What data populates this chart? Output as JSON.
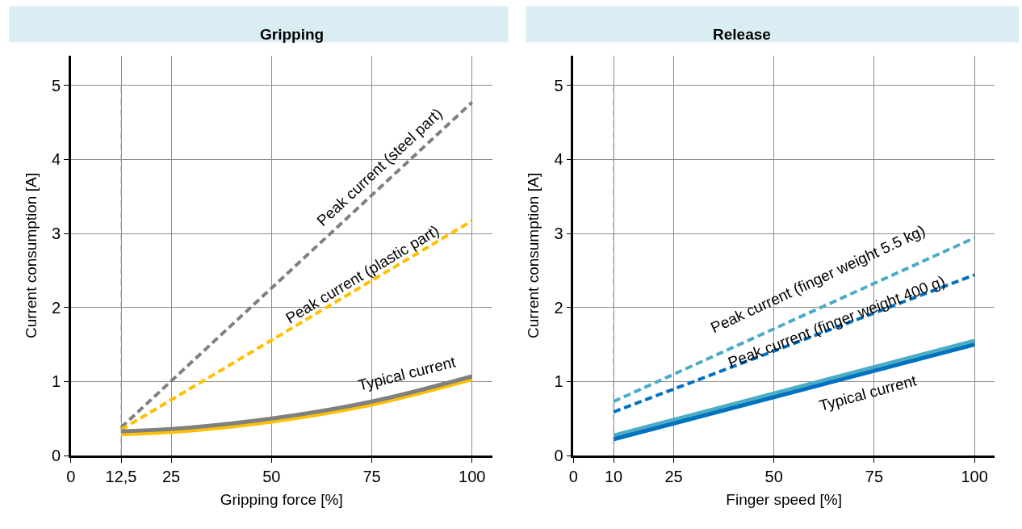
{
  "chart_data": [
    {
      "type": "line",
      "title": "Gripping",
      "xlabel": "Gripping force [%]",
      "ylabel": "Current consumption [A]",
      "xlim": [
        0,
        105
      ],
      "ylim": [
        0,
        5.4
      ],
      "xticks": [
        0,
        {
          "value": 12.5,
          "label": "12,5"
        },
        25,
        50,
        75,
        100
      ],
      "yticks": [
        0,
        1,
        2,
        3,
        4,
        5
      ],
      "grid": true,
      "series": [
        {
          "color": "#808080",
          "line_style": "dashed",
          "x": [
            12.5,
            100
          ],
          "values": [
            0.38,
            4.77
          ]
        },
        {
          "color": "#ffc000",
          "line_style": "dashed",
          "x": [
            12.5,
            100
          ],
          "values": [
            0.35,
            3.17
          ]
        },
        {
          "color": "#ffc000",
          "line_style": "solid",
          "x": [
            12.5,
            25,
            50,
            75,
            100
          ],
          "values": [
            0.29,
            0.32,
            0.46,
            0.69,
            1.03
          ]
        },
        {
          "color": "#808080",
          "line_style": "solid",
          "x": [
            12.5,
            25,
            50,
            75,
            100
          ],
          "values": [
            0.33,
            0.36,
            0.5,
            0.73,
            1.07
          ]
        }
      ],
      "ref_lines": [
        {
          "axis": "x",
          "value": 12.5,
          "color": "#a0a0a0",
          "line_style": "dashed"
        }
      ],
      "annotations": [
        "Peak current (steel part)",
        "Peak current (plastic part)",
        "Typical current"
      ]
    },
    {
      "type": "line",
      "title": "Release",
      "xlabel": "Finger speed [%]",
      "ylabel": "Current consumption [A]",
      "xlim": [
        0,
        105
      ],
      "ylim": [
        0,
        5.4
      ],
      "xticks": [
        0,
        {
          "value": 10,
          "label": "10"
        },
        25,
        50,
        75,
        100
      ],
      "yticks": [
        0,
        1,
        2,
        3,
        4,
        5
      ],
      "grid": true,
      "series": [
        {
          "color": "#4bacc6",
          "line_style": "dashed",
          "x": [
            10,
            100
          ],
          "values": [
            0.73,
            2.94
          ]
        },
        {
          "color": "#0070c0",
          "line_style": "dashed",
          "x": [
            10,
            100
          ],
          "values": [
            0.59,
            2.44
          ]
        },
        {
          "color": "#4bacc6",
          "line_style": "solid",
          "x": [
            10,
            100
          ],
          "values": [
            0.27,
            1.55
          ]
        },
        {
          "color": "#0070c0",
          "line_style": "solid",
          "x": [
            10,
            100
          ],
          "values": [
            0.22,
            1.5
          ]
        }
      ],
      "ref_lines": [
        {
          "axis": "x",
          "value": 10,
          "color": "#a0a0a0",
          "line_style": "dashed"
        }
      ],
      "annotations": [
        "Peak current (finger weight 5.5 kg)",
        "Peak current (finger weight 400 g)",
        "Typical current"
      ]
    }
  ]
}
